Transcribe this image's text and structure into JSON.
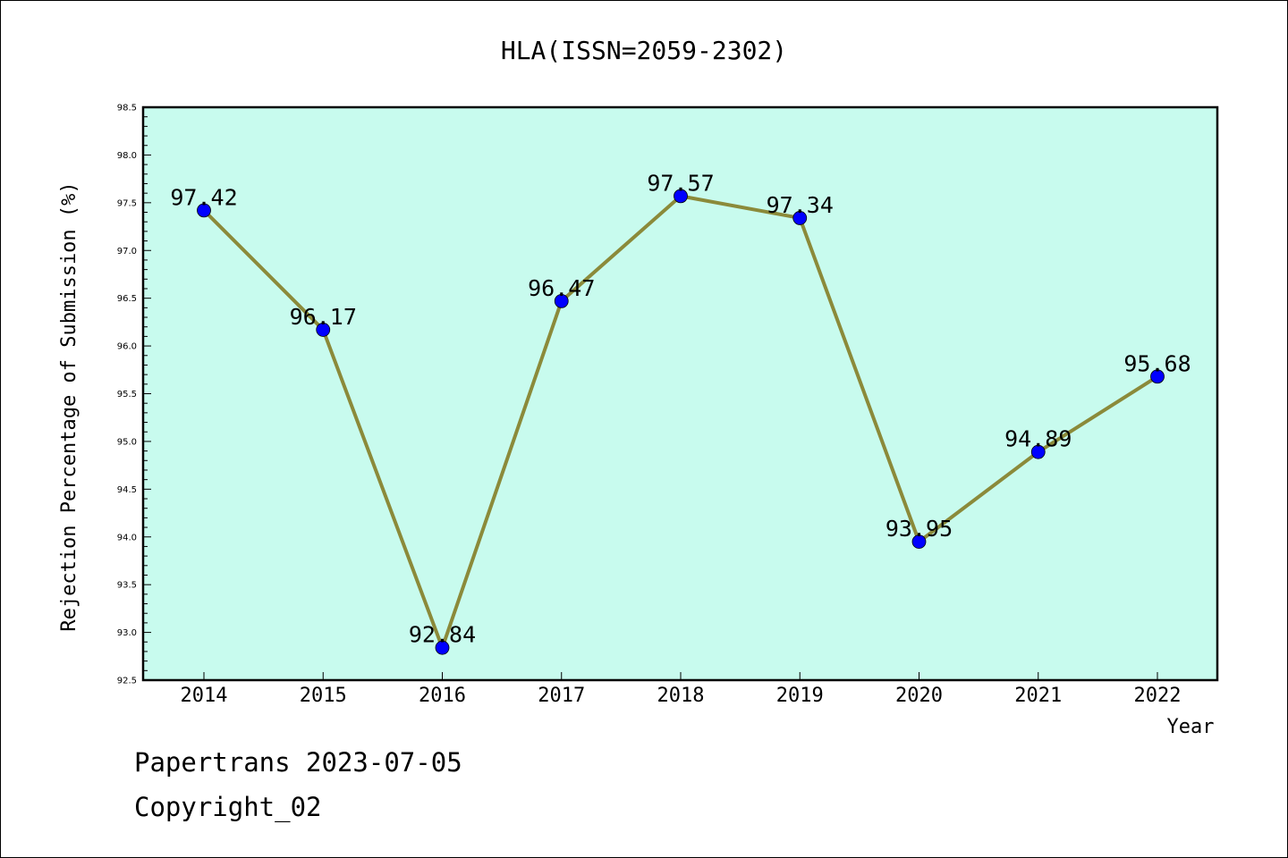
{
  "chart_data": {
    "type": "line",
    "title": "HLA(ISSN=2059-2302)",
    "xlabel": "Year",
    "ylabel": "Rejection Percentage of Submission (%)",
    "categories": [
      "2014",
      "2015",
      "2016",
      "2017",
      "2018",
      "2019",
      "2020",
      "2021",
      "2022"
    ],
    "values": [
      97.42,
      96.17,
      92.84,
      96.47,
      97.57,
      97.34,
      93.95,
      94.89,
      95.68
    ],
    "data_labels": [
      "97.42",
      "96.17",
      "92.84",
      "96.47",
      "97.57",
      "97.34",
      "93.95",
      "94.89",
      "95.68"
    ],
    "ylim": [
      92.5,
      98.5
    ],
    "yticks": [
      "92.5",
      "93.0",
      "93.5",
      "94.0",
      "94.5",
      "95.0",
      "95.5",
      "96.0",
      "96.5",
      "97.0",
      "97.5",
      "98.0",
      "98.5"
    ],
    "grid": false,
    "legend": "none",
    "colors": {
      "plot_background": "#c8fbee",
      "line": "#8b8a3a",
      "marker": "#0000ff"
    }
  },
  "footer": {
    "line1": "Papertrans 2023-07-05",
    "line2": "Copyright_02"
  }
}
